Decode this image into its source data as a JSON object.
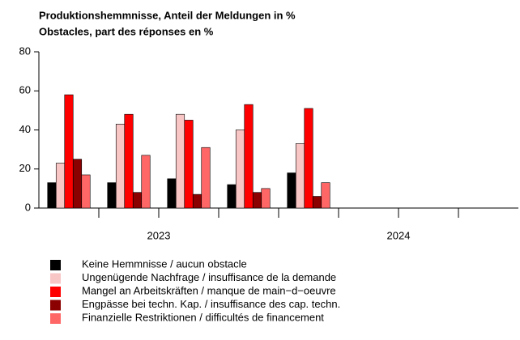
{
  "chart_data": {
    "type": "bar",
    "title": [
      "Produktionshemmnisse, Anteil der Meldungen in %",
      "Obstacles, part des réponses en %"
    ],
    "categories": [
      null,
      null,
      null,
      null,
      null,
      null,
      null,
      null
    ],
    "x_groups": [
      "2023",
      "2024"
    ],
    "series": [
      {
        "name": "Keine Hemmnisse / aucun obstacle",
        "color": "#000000",
        "values": [
          13,
          13,
          15,
          12,
          18,
          null,
          null,
          null
        ]
      },
      {
        "name": "Ungenügende Nachfrage / insuffisance de la demande",
        "color": "#f9c6c6",
        "values": [
          23,
          43,
          48,
          40,
          33,
          null,
          null,
          null
        ]
      },
      {
        "name": "Mangel an Arbeitskräften / manque de main−d−oeuvre",
        "color": "#ff0000",
        "values": [
          58,
          48,
          45,
          53,
          51,
          null,
          null,
          null
        ]
      },
      {
        "name": "Engpässe bei techn. Kap. / insuffisance des cap. techn.",
        "color": "#8b0000",
        "values": [
          25,
          8,
          7,
          8,
          6,
          null,
          null,
          null
        ]
      },
      {
        "name": "Finanzielle Restriktionen / difficultés de financement",
        "color": "#ff6666",
        "values": [
          17,
          27,
          31,
          10,
          13,
          null,
          null,
          null
        ]
      }
    ],
    "ylim": [
      0,
      80
    ],
    "yticks": [
      0,
      20,
      40,
      60,
      80
    ],
    "grid": false
  }
}
